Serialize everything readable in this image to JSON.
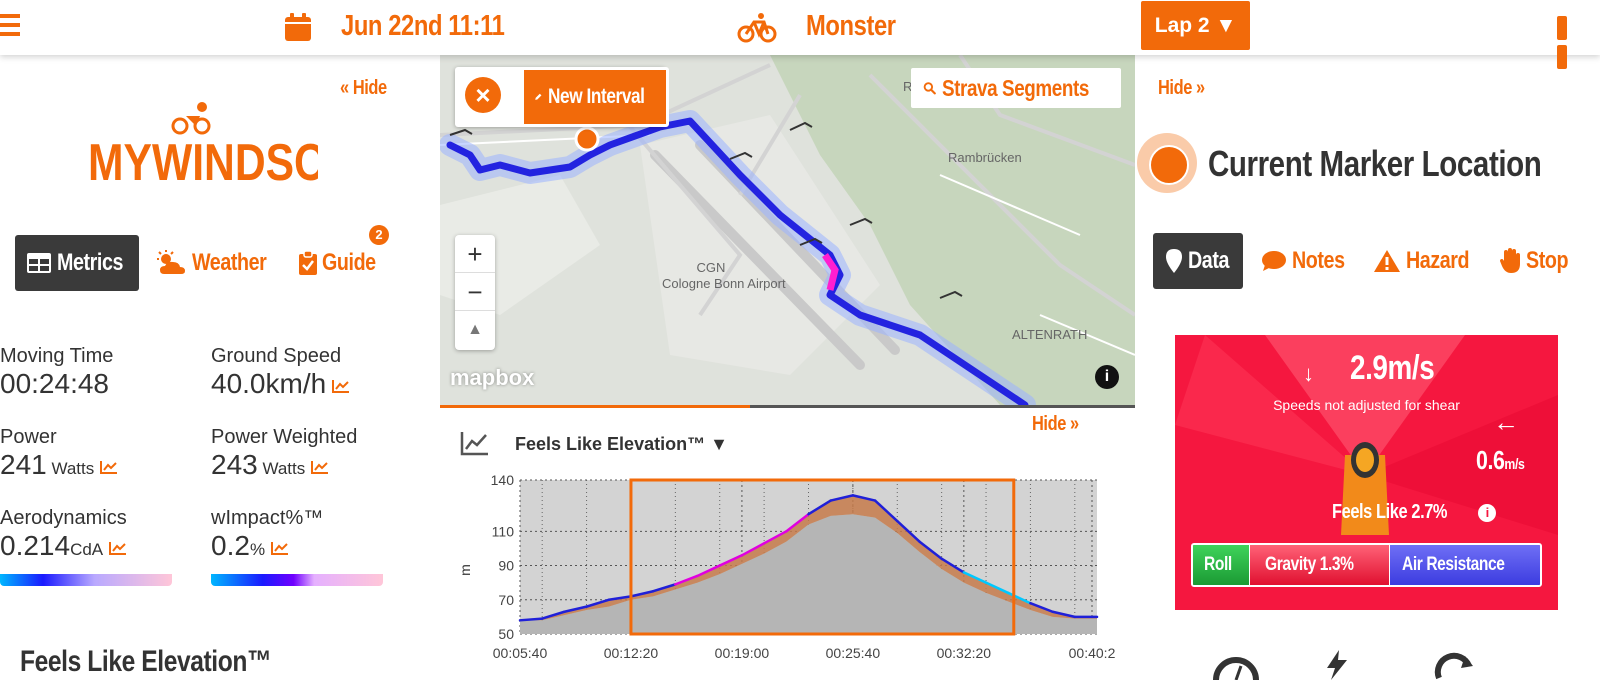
{
  "topbar": {
    "date": "Jun 22nd 11:11",
    "activity": "Monster",
    "lap_label": "Lap 2 ▼"
  },
  "left": {
    "hide_label": "« Hide",
    "logo_text": "MYWINDSOCK",
    "tabs": {
      "metrics": "Metrics",
      "weather": "Weather",
      "guide": "Guide"
    },
    "guide_badge": "2",
    "metrics": {
      "moving_time_label": "Moving Time",
      "moving_time_value": "00:24:48",
      "ground_speed_label": "Ground Speed",
      "ground_speed_value": "40.0km/h",
      "power_label": "Power",
      "power_value": "241",
      "power_unit": " Watts",
      "power_weighted_label": "Power Weighted",
      "power_weighted_value": "243",
      "power_weighted_unit": " Watts",
      "aero_label": "Aerodynamics",
      "aero_value": "0.214",
      "aero_unit": "CdA",
      "wimpact_label": "wImpact%™",
      "wimpact_value": "0.2",
      "wimpact_unit": "%"
    },
    "section_heading": "Feels Like Elevation™"
  },
  "map": {
    "new_interval": "New Interval",
    "strava": "Strava Segments",
    "zoom_in": "+",
    "zoom_out": "−",
    "north": "▲",
    "mapbox": "mapbox",
    "info": "i",
    "labels": {
      "rambrucken": "Rambrücken",
      "airport_code": "CGN",
      "airport_name": "Cologne Bonn Airport",
      "altenrath": "ALTENRATH",
      "clipped_letter": "R"
    }
  },
  "elevation": {
    "hide_label": "Hide »",
    "title": "Feels Like Elevation™ ▼",
    "ylabel": "m"
  },
  "chart_data": {
    "type": "area",
    "title": "Feels Like Elevation™",
    "ylabel": "m",
    "xlabel": "",
    "ylim": [
      50,
      140
    ],
    "y_ticks": [
      50,
      70,
      90,
      110,
      140
    ],
    "x_ticks": [
      "00:05:40",
      "00:12:20",
      "00:19:00",
      "00:25:40",
      "00:32:20",
      "00:40:2"
    ],
    "x": [
      "00:05:40",
      "00:07:00",
      "00:08:20",
      "00:09:40",
      "00:11:00",
      "00:12:20",
      "00:13:40",
      "00:15:00",
      "00:16:20",
      "00:17:40",
      "00:19:00",
      "00:20:20",
      "00:21:40",
      "00:23:00",
      "00:24:20",
      "00:25:40",
      "00:27:00",
      "00:28:20",
      "00:29:40",
      "00:31:00",
      "00:32:20",
      "00:33:40",
      "00:35:00",
      "00:36:20",
      "00:37:40",
      "00:39:00",
      "00:40:20"
    ],
    "series": [
      {
        "values": [
          58,
          59,
          63,
          66,
          70,
          72,
          75,
          79,
          84,
          90,
          96,
          103,
          110,
          120,
          128,
          131,
          128,
          116,
          104,
          94,
          86,
          80,
          74,
          68,
          63,
          60,
          60
        ]
      },
      {
        "values": [
          58,
          58,
          61,
          64,
          66,
          70,
          72,
          76,
          80,
          85,
          91,
          97,
          104,
          114,
          119,
          120,
          118,
          109,
          98,
          88,
          80,
          74,
          69,
          64,
          60,
          59,
          59
        ]
      }
    ],
    "selection": {
      "start": "00:12:20",
      "end": "00:35:20"
    },
    "grid": true
  },
  "right": {
    "hide_label": "Hide »",
    "marker_title": "Current Marker Location",
    "tabs": {
      "data": "Data",
      "notes": "Notes",
      "hazard": "Hazard",
      "stop": "Stop"
    },
    "wind": {
      "head_arrow": "↓",
      "head_speed": "2.9m/s",
      "shear_note": "Speeds not adjusted for shear",
      "cross_arrow": "←",
      "cross_speed": "0.6",
      "cross_unit": "m/s",
      "feels_like": "Feels Like 2.7%",
      "roll": "Roll",
      "gravity": "Gravity 1.3%",
      "air": "Air Resistance"
    }
  },
  "colors": {
    "accent": "#f26a0a",
    "dark_tab": "#3a3a3a",
    "wind_card": "#f5173f"
  }
}
